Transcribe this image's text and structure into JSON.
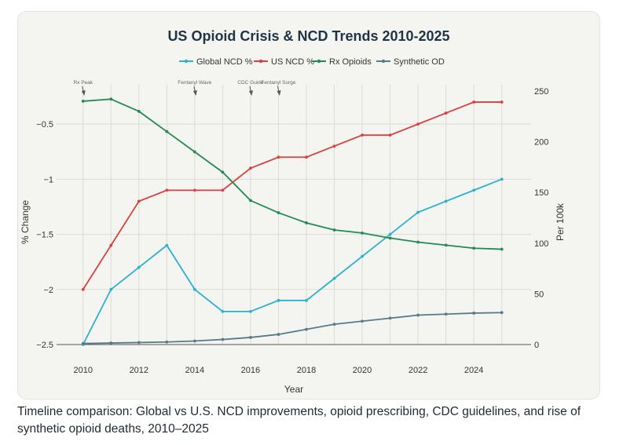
{
  "chart_data": {
    "type": "line",
    "title": "US Opioid Crisis & NCD Trends 2010-2025",
    "xlabel": "Year",
    "ylabel_left": "% Change",
    "ylabel_right": "Per 100k",
    "x": [
      2010,
      2011,
      2012,
      2013,
      2014,
      2015,
      2016,
      2017,
      2018,
      2019,
      2020,
      2021,
      2022,
      2023,
      2024,
      2025
    ],
    "xticks": [
      "2010",
      "2012",
      "2014",
      "2016",
      "2018",
      "2020",
      "2022",
      "2024"
    ],
    "xtick_values": [
      2010,
      2012,
      2014,
      2016,
      2018,
      2020,
      2022,
      2024
    ],
    "xlim": [
      2009.05,
      2026.05
    ],
    "yticks_left": [
      "−0.5",
      "−1",
      "−1.5",
      "−2",
      "−2.5"
    ],
    "ytick_left_values": [
      -0.5,
      -1,
      -1.5,
      -2,
      -2.5
    ],
    "ylim_left": [
      -2.5,
      -0.2
    ],
    "yticks_right": [
      "250",
      "200",
      "150",
      "100",
      "50",
      "0"
    ],
    "ytick_right_values": [
      250,
      200,
      150,
      100,
      50,
      0
    ],
    "ylim_right": [
      0,
      250
    ],
    "grid": true,
    "legend_position": "top-center",
    "series": [
      {
        "name": "Global NCD %",
        "axis": "left",
        "color": "#2bb2d0",
        "values": [
          -2.5,
          -2.0,
          -1.8,
          -1.6,
          -2.0,
          -2.2,
          -2.2,
          -2.1,
          -2.1,
          -1.9,
          -1.7,
          -1.5,
          -1.3,
          -1.2,
          -1.1,
          -1.0
        ]
      },
      {
        "name": "US NCD %",
        "axis": "left",
        "color": "#d9403f",
        "values": [
          -2.0,
          -1.6,
          -1.2,
          -1.1,
          -1.1,
          -1.1,
          -0.9,
          -0.8,
          -0.8,
          -0.7,
          -0.6,
          -0.6,
          -0.5,
          -0.4,
          -0.3,
          -0.3
        ]
      },
      {
        "name": "Rx Opioids",
        "axis": "right",
        "color": "#238b52",
        "values": [
          240,
          242,
          230,
          210,
          190,
          170,
          142,
          130,
          120,
          113,
          110,
          105,
          101,
          98,
          95,
          94
        ]
      },
      {
        "name": "Synthetic OD",
        "axis": "right",
        "color": "#5a7a88",
        "values": [
          1,
          1.5,
          2,
          2.5,
          3.5,
          5,
          7,
          10,
          15,
          20,
          23,
          26,
          29,
          30,
          31,
          31.5
        ]
      }
    ],
    "annotations": [
      {
        "text": "Rx Peak",
        "x": 2010
      },
      {
        "text": "Fentanyl Wave",
        "x": 2014
      },
      {
        "text": "CDC Guide",
        "x": 2016
      },
      {
        "text": "Fentanyl Surge",
        "x": 2017
      }
    ]
  },
  "caption": "Timeline comparison: Global vs U.S. NCD improvements, opioid prescribing, CDC guidelines, and rise of synthetic opioid deaths, 2010–2025"
}
